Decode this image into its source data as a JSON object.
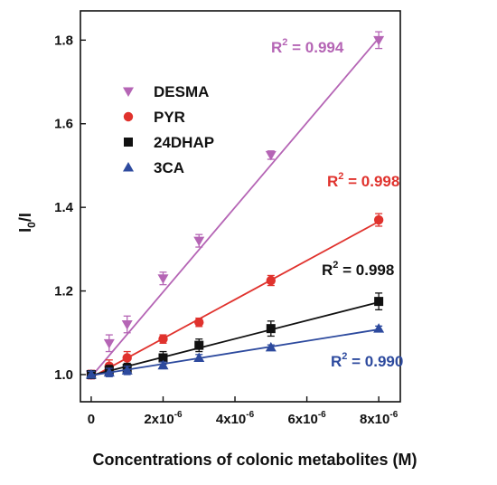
{
  "chart_data": {
    "type": "scatter",
    "xlabel": "Concentrations of colonic metabolites (M)",
    "ylabel_base": "I",
    "ylabel_sub": "0",
    "ylabel_tail": "/I",
    "xlim": [
      -3e-07,
      8.6e-06
    ],
    "ylim": [
      0.935,
      1.87
    ],
    "x_ticks": [
      0,
      2e-06,
      4e-06,
      6e-06,
      8e-06
    ],
    "x_tick_labels": [
      {
        "base": "0",
        "exp": ""
      },
      {
        "base": "2x10",
        "exp": "-6"
      },
      {
        "base": "4x10",
        "exp": "-6"
      },
      {
        "base": "6x10",
        "exp": "-6"
      },
      {
        "base": "8x10",
        "exp": "-6"
      }
    ],
    "y_ticks": [
      1.0,
      1.2,
      1.4,
      1.6,
      1.8
    ],
    "y_tick_labels": [
      "1.0",
      "1.2",
      "1.4",
      "1.6",
      "1.8"
    ],
    "grid": false,
    "legend_position": "upper-left",
    "series": [
      {
        "name": "DESMA",
        "marker": "triangle-down",
        "color": "#b565b5",
        "x": [
          0,
          5e-07,
          1e-06,
          2e-06,
          3e-06,
          5e-06,
          8e-06
        ],
        "y": [
          1.0,
          1.075,
          1.12,
          1.23,
          1.32,
          1.525,
          1.8
        ],
        "err": [
          0.01,
          0.02,
          0.02,
          0.015,
          0.015,
          0.01,
          0.02
        ],
        "fit": {
          "intercept": 0.995,
          "slope": 101250
        },
        "r2_base": "R",
        "r2_exp": "2",
        "r2_value": " = 0.994"
      },
      {
        "name": "PYR",
        "marker": "circle",
        "color": "#e0322d",
        "x": [
          0,
          5e-07,
          1e-06,
          2e-06,
          3e-06,
          5e-06,
          8e-06
        ],
        "y": [
          1.0,
          1.02,
          1.04,
          1.085,
          1.125,
          1.225,
          1.37
        ],
        "err": [
          0.01,
          0.015,
          0.015,
          0.01,
          0.01,
          0.012,
          0.015
        ],
        "fit": {
          "intercept": 0.993,
          "slope": 46625
        },
        "r2_base": "R",
        "r2_exp": "2",
        "r2_value": " = 0.998"
      },
      {
        "name": "24DHAP",
        "marker": "square",
        "color": "#111111",
        "x": [
          0,
          5e-07,
          1e-06,
          2e-06,
          3e-06,
          5e-06,
          8e-06
        ],
        "y": [
          1.0,
          1.01,
          1.015,
          1.04,
          1.07,
          1.11,
          1.175
        ],
        "err": [
          0.008,
          0.012,
          0.012,
          0.015,
          0.015,
          0.018,
          0.02
        ],
        "fit": {
          "intercept": 0.998,
          "slope": 21875
        },
        "r2_base": "R",
        "r2_exp": "2",
        "r2_value": " = 0.998"
      },
      {
        "name": "3CA",
        "marker": "triangle-up",
        "color": "#2d4a9e",
        "x": [
          0,
          5e-07,
          1e-06,
          2e-06,
          3e-06,
          5e-06,
          8e-06
        ],
        "y": [
          1.0,
          1.005,
          1.01,
          1.022,
          1.04,
          1.065,
          1.11
        ],
        "err": [
          0.008,
          0.01,
          0.01,
          0.008,
          0.008,
          0.006,
          0.006
        ],
        "fit": {
          "intercept": 0.998,
          "slope": 13750
        },
        "r2_base": "R",
        "r2_exp": "2",
        "r2_value": " = 0.990"
      }
    ]
  }
}
